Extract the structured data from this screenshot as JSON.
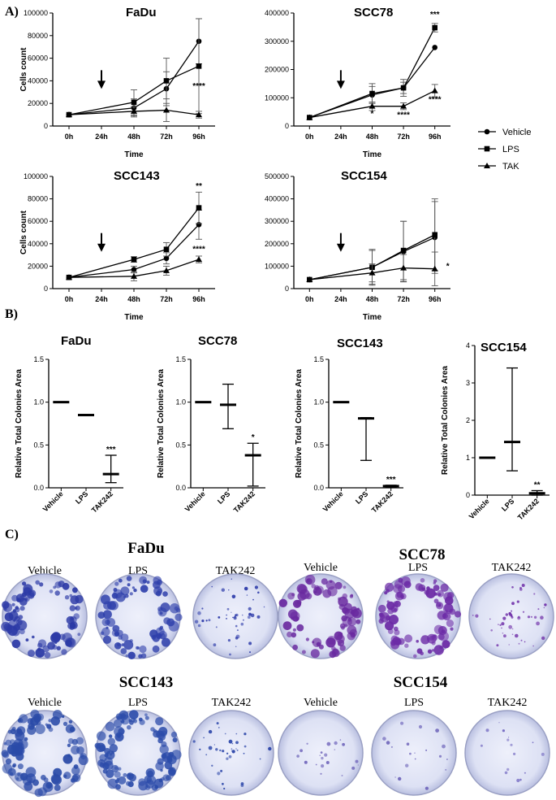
{
  "panel_labels": {
    "a": "A)",
    "b": "B)",
    "c": "C)"
  },
  "legend": {
    "entries": [
      {
        "label": "Vehicle",
        "marker": "circle"
      },
      {
        "label": "LPS",
        "marker": "square"
      },
      {
        "label": "TAK",
        "marker": "triangle"
      }
    ]
  },
  "chart_data": [
    {
      "type": "line",
      "title": "FaDu",
      "xlabel": "Time",
      "ylabel": "Cells count",
      "x": [
        "0h",
        "24h",
        "48h",
        "72h",
        "96h"
      ],
      "ylim": [
        0,
        100000
      ],
      "yticks": [
        0,
        20000,
        40000,
        60000,
        80000,
        100000
      ],
      "arrow_at": "24h",
      "series": [
        {
          "name": "Vehicle",
          "marker": "circle",
          "x": [
            "0h",
            "48h",
            "72h",
            "96h"
          ],
          "values": [
            10000,
            16000,
            33000,
            75000
          ],
          "err": [
            0,
            8000,
            15000,
            20000
          ]
        },
        {
          "name": "LPS",
          "marker": "square",
          "x": [
            "0h",
            "48h",
            "72h",
            "96h"
          ],
          "values": [
            10000,
            21000,
            40000,
            53000
          ],
          "err": [
            0,
            11000,
            20000,
            42000
          ]
        },
        {
          "name": "TAK",
          "marker": "triangle",
          "x": [
            "0h",
            "48h",
            "72h",
            "96h"
          ],
          "values": [
            10000,
            13000,
            14000,
            10000
          ],
          "err": [
            0,
            4000,
            10000,
            3000
          ]
        }
      ],
      "annotations": [
        {
          "x": "96h",
          "y": 33000,
          "text": "****"
        }
      ]
    },
    {
      "type": "line",
      "title": "SCC78",
      "xlabel": "Time",
      "ylabel": "",
      "x": [
        "0h",
        "24h",
        "48h",
        "72h",
        "96h"
      ],
      "ylim": [
        0,
        400000
      ],
      "yticks": [
        0,
        100000,
        200000,
        300000,
        400000
      ],
      "arrow_at": "24h",
      "series": [
        {
          "name": "Vehicle",
          "marker": "circle",
          "x": [
            "0h",
            "48h",
            "72h",
            "96h"
          ],
          "values": [
            30000,
            110000,
            135000,
            278000
          ],
          "err": [
            0,
            30000,
            20000,
            0
          ]
        },
        {
          "name": "LPS",
          "marker": "square",
          "x": [
            "0h",
            "48h",
            "72h",
            "96h"
          ],
          "values": [
            30000,
            115000,
            135000,
            348000
          ],
          "err": [
            0,
            35000,
            30000,
            15000
          ]
        },
        {
          "name": "TAK",
          "marker": "triangle",
          "x": [
            "0h",
            "48h",
            "72h",
            "96h"
          ],
          "values": [
            30000,
            70000,
            70000,
            125000
          ],
          "err": [
            0,
            15000,
            12000,
            22000
          ]
        }
      ],
      "annotations": [
        {
          "x": "96h",
          "y": 385000,
          "text": "***"
        },
        {
          "x": "96h",
          "y": 85000,
          "text": "****"
        },
        {
          "x": "48h",
          "y": 35000,
          "text": "*"
        },
        {
          "x": "72h",
          "y": 30000,
          "text": "****"
        }
      ]
    },
    {
      "type": "line",
      "title": "SCC143",
      "xlabel": "Time",
      "ylabel": "Cells count",
      "x": [
        "0h",
        "24h",
        "48h",
        "72h",
        "96h"
      ],
      "ylim": [
        0,
        100000
      ],
      "yticks": [
        0,
        20000,
        40000,
        60000,
        80000,
        100000
      ],
      "arrow_at": "24h",
      "series": [
        {
          "name": "Vehicle",
          "marker": "circle",
          "x": [
            "0h",
            "48h",
            "72h",
            "96h"
          ],
          "values": [
            10000,
            17000,
            27000,
            57000
          ],
          "err": [
            0,
            3000,
            5000,
            13000
          ]
        },
        {
          "name": "LPS",
          "marker": "square",
          "x": [
            "0h",
            "48h",
            "72h",
            "96h"
          ],
          "values": [
            10000,
            26000,
            35000,
            72000
          ],
          "err": [
            0,
            2500,
            6000,
            14000
          ]
        },
        {
          "name": "TAK",
          "marker": "triangle",
          "x": [
            "0h",
            "48h",
            "72h",
            "96h"
          ],
          "values": [
            10000,
            11000,
            16000,
            26000
          ],
          "err": [
            0,
            4000,
            4000,
            3000
          ]
        }
      ],
      "annotations": [
        {
          "x": "96h",
          "y": 89000,
          "text": "**"
        },
        {
          "x": "96h",
          "y": 33000,
          "text": "****"
        }
      ]
    },
    {
      "type": "line",
      "title": "SCC154",
      "xlabel": "Time",
      "ylabel": "",
      "x": [
        "0h",
        "24h",
        "48h",
        "72h",
        "96h"
      ],
      "ylim": [
        0,
        500000
      ],
      "yticks": [
        0,
        100000,
        200000,
        300000,
        400000,
        500000
      ],
      "arrow_at": "24h",
      "series": [
        {
          "name": "Vehicle",
          "marker": "circle",
          "x": [
            "0h",
            "48h",
            "72h",
            "96h"
          ],
          "values": [
            40000,
            95000,
            165000,
            228000
          ],
          "err": [
            0,
            75000,
            135000,
            160000
          ]
        },
        {
          "name": "LPS",
          "marker": "square",
          "x": [
            "0h",
            "48h",
            "72h",
            "96h"
          ],
          "values": [
            40000,
            95000,
            170000,
            240000
          ],
          "err": [
            0,
            80000,
            130000,
            160000
          ]
        },
        {
          "name": "TAK",
          "marker": "triangle",
          "x": [
            "0h",
            "48h",
            "72h",
            "96h"
          ],
          "values": [
            40000,
            70000,
            92000,
            88000
          ],
          "err": [
            0,
            40000,
            60000,
            75000
          ]
        }
      ],
      "annotations": [
        {
          "x": "96h",
          "y": 88000,
          "text": "*",
          "side": "right"
        }
      ]
    },
    {
      "type": "scatter",
      "title": "FaDu",
      "ylabel": "Relative Total Colonies Area",
      "categories": [
        "Vehicle",
        "LPS",
        "TAK242"
      ],
      "ylim": [
        0,
        1.5
      ],
      "yticks": [
        0.0,
        0.5,
        1.0,
        1.5
      ],
      "values": [
        1.0,
        0.85,
        0.16
      ],
      "err_low": [
        1.0,
        0.85,
        0.06
      ],
      "err_high": [
        1.0,
        0.85,
        0.38
      ],
      "annotations": [
        {
          "category": "TAK242",
          "text": "***"
        }
      ]
    },
    {
      "type": "scatter",
      "title": "SCC78",
      "ylabel": "Relative Total Colonies Area",
      "categories": [
        "Vehicle",
        "LPS",
        "TAK242"
      ],
      "ylim": [
        0,
        1.5
      ],
      "yticks": [
        0.0,
        0.5,
        1.0,
        1.5
      ],
      "values": [
        1.0,
        0.97,
        0.38
      ],
      "err_low": [
        1.0,
        0.69,
        0.02
      ],
      "err_high": [
        1.0,
        1.21,
        0.52
      ],
      "annotations": [
        {
          "category": "TAK242",
          "text": "*"
        }
      ]
    },
    {
      "type": "scatter",
      "title": "SCC143",
      "ylabel": "Relative Total Colonies Area",
      "categories": [
        "Vehicle",
        "LPS",
        "TAK242"
      ],
      "ylim": [
        0,
        1.5
      ],
      "yticks": [
        0.0,
        0.5,
        1.0,
        1.5
      ],
      "values": [
        1.0,
        0.81,
        0.02
      ],
      "err_low": [
        1.0,
        0.32,
        0.01
      ],
      "err_high": [
        1.0,
        0.82,
        0.03
      ],
      "annotations": [
        {
          "category": "TAK242",
          "text": "***"
        }
      ]
    },
    {
      "type": "scatter",
      "title": "SCC154",
      "ylabel": "Relative Total Colonies Area",
      "categories": [
        "Vehicle",
        "LPS",
        "TAK242"
      ],
      "ylim": [
        0,
        4
      ],
      "yticks": [
        0,
        1,
        2,
        3,
        4
      ],
      "values": [
        1.0,
        1.42,
        0.05
      ],
      "err_low": [
        1.0,
        0.65,
        0.0
      ],
      "err_high": [
        1.0,
        3.4,
        0.12
      ],
      "annotations": [
        {
          "category": "TAK242",
          "text": "**"
        }
      ]
    }
  ],
  "dishes": {
    "groups": [
      {
        "title": "FaDu",
        "labels": [
          "Vehicle",
          "LPS",
          "TAK242"
        ],
        "colors": [
          "#2c3aa6",
          "#2f40ab",
          "#2a38a8"
        ],
        "density": [
          0.7,
          0.6,
          0.3
        ]
      },
      {
        "title": "SCC78",
        "labels": [
          "Vehicle",
          "LPS",
          "TAK242"
        ],
        "colors": [
          "#6a2aa0",
          "#6c2ba6",
          "#6f2ea8"
        ],
        "density": [
          0.65,
          0.7,
          0.3
        ]
      },
      {
        "title": "SCC143",
        "labels": [
          "Vehicle",
          "LPS",
          "TAK242"
        ],
        "colors": [
          "#2b4ba8",
          "#2c4caa",
          "#2a44a8"
        ],
        "density": [
          0.8,
          0.8,
          0.2
        ]
      },
      {
        "title": "SCC154",
        "labels": [
          "Vehicle",
          "LPS",
          "TAK242"
        ],
        "colors": [
          "#6a5fb8",
          "#6a60b8",
          "#7066c0"
        ],
        "density": [
          0.05,
          0.04,
          0.0
        ]
      }
    ]
  }
}
